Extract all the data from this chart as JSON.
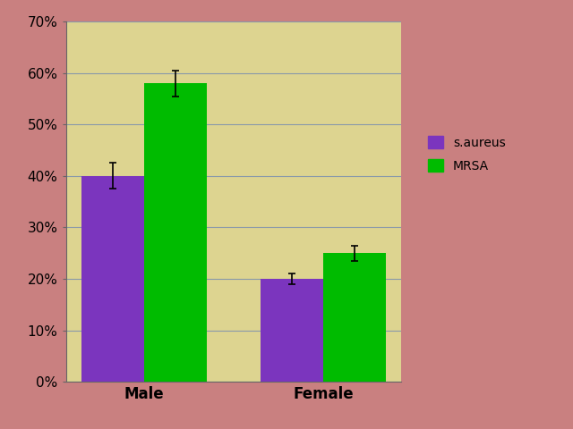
{
  "categories": [
    "Male",
    "Female"
  ],
  "series": {
    "s.aureus": {
      "values": [
        40,
        20
      ],
      "errors": [
        2.5,
        1.0
      ],
      "color": "#7B35BE"
    },
    "MRSA": {
      "values": [
        58,
        25
      ],
      "errors": [
        2.5,
        1.5
      ],
      "color": "#00BB00"
    }
  },
  "ylim": [
    0,
    70
  ],
  "yticks": [
    0,
    10,
    20,
    30,
    40,
    50,
    60,
    70
  ],
  "ytick_labels": [
    "0%",
    "10%",
    "20%",
    "30%",
    "40%",
    "50%",
    "60%",
    "70%"
  ],
  "bar_width": 0.35,
  "figure_bg": "#C98080",
  "plot_bg": "#DDD490",
  "grid_color": "#8899AA",
  "legend_labels": [
    "s.aureus",
    "MRSA"
  ],
  "legend_colors": [
    "#7B35BE",
    "#00BB00"
  ],
  "tick_fontsize": 11,
  "xlabel_fontsize": 12
}
